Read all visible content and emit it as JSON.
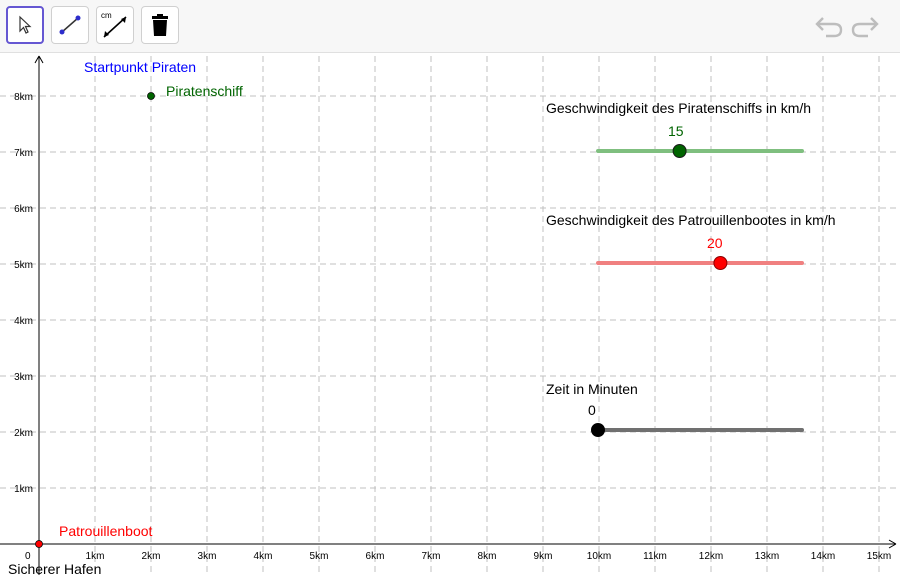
{
  "toolbar": {
    "tools": [
      {
        "name": "move-tool-button",
        "icon": "arrow-pointer-icon",
        "active": true
      },
      {
        "name": "segment-tool-button",
        "icon": "segment-icon",
        "active": false
      },
      {
        "name": "distance-tool-button",
        "icon": "distance-cm-icon",
        "label": "cm",
        "active": false
      },
      {
        "name": "delete-tool-button",
        "icon": "trash-icon",
        "active": false
      }
    ],
    "undo_icon": "undo-icon",
    "redo_icon": "redo-icon"
  },
  "axes": {
    "x_ticks": [
      "1km",
      "2km",
      "3km",
      "4km",
      "5km",
      "6km",
      "7km",
      "8km",
      "9km",
      "10km",
      "11km",
      "12km",
      "13km",
      "14km",
      "15km"
    ],
    "y_ticks": [
      "1km",
      "2km",
      "3km",
      "4km",
      "5km",
      "6km",
      "7km",
      "8km"
    ],
    "origin_label": "0",
    "xlim": [
      0,
      15
    ],
    "ylim": [
      0,
      8.5
    ]
  },
  "points": {
    "pirate_start_label": "Startpunkt Piraten",
    "pirate_ship_label": "Piratenschiff",
    "pirate_ship_pos": [
      2,
      8
    ],
    "patrol_boat_label": "Patrouillenboot",
    "patrol_boat_pos": [
      0,
      0
    ],
    "harbor_label": "Sicherer Hafen"
  },
  "sliders": [
    {
      "title": "Geschwindigkeit des Piratenschiffs in km/h",
      "value_text": "15",
      "fraction": 0.4,
      "color": "#006400",
      "track": "#7fbf7f"
    },
    {
      "title": "Geschwindigkeit des Patrouillenbootes in km/h",
      "value_text": "20",
      "fraction": 0.6,
      "color": "#ff0000",
      "track": "#f08080"
    },
    {
      "title": "Zeit in Minuten",
      "value_text": "0",
      "fraction": 0.0,
      "color": "#000000",
      "track": "#707070"
    }
  ],
  "colors": {
    "grid": "#c0c0c0",
    "blue": "#0000ff",
    "green": "#006400",
    "red": "#ff0000"
  }
}
